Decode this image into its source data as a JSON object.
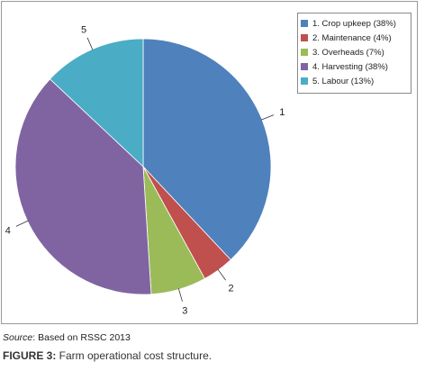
{
  "chart_data": {
    "type": "pie",
    "categories": [
      "1. Crop upkeep (38%)",
      "2. Maintenance (4%)",
      "3. Overheads (7%)",
      "4. Harvesting (38%)",
      "5. Labour (13%)"
    ],
    "slice_labels": [
      "1",
      "2",
      "3",
      "4",
      "5"
    ],
    "values": [
      38,
      4,
      7,
      38,
      13
    ],
    "colors": [
      "#4f81bd",
      "#c0504d",
      "#9bbb59",
      "#8064a2",
      "#4bacc6"
    ],
    "start_angle": "12 o'clock, clockwise",
    "legend_position": "top-right"
  },
  "source": {
    "label": "Source",
    "text": ": Based on RSSC 2013"
  },
  "figure": {
    "label": "FIGURE 3:",
    "text": " Farm operational cost structure."
  }
}
